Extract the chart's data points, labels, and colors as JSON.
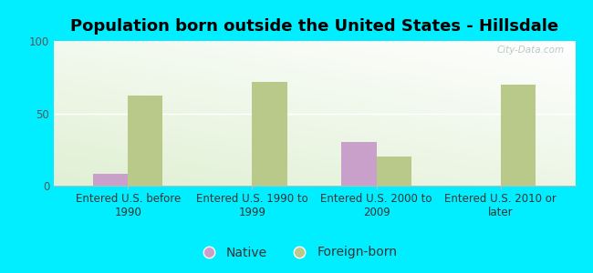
{
  "title": "Population born outside the United States - Hillsdale",
  "categories": [
    "Entered U.S. before\n1990",
    "Entered U.S. 1990 to\n1999",
    "Entered U.S. 2000 to\n2009",
    "Entered U.S. 2010 or\nlater"
  ],
  "native_values": [
    8,
    0,
    30,
    0
  ],
  "foreign_values": [
    62,
    72,
    20,
    70
  ],
  "native_color": "#c9a0c9",
  "foreign_color": "#b8c98a",
  "background_color": "#00eeff",
  "plot_bg_color_topleft": "#e8f4e0",
  "plot_bg_color_white": "#f5faf0",
  "ylim": [
    0,
    100
  ],
  "yticks": [
    0,
    50,
    100
  ],
  "bar_width": 0.28,
  "title_fontsize": 13,
  "tick_fontsize": 8.5,
  "legend_fontsize": 10,
  "watermark": "City-Data.com"
}
